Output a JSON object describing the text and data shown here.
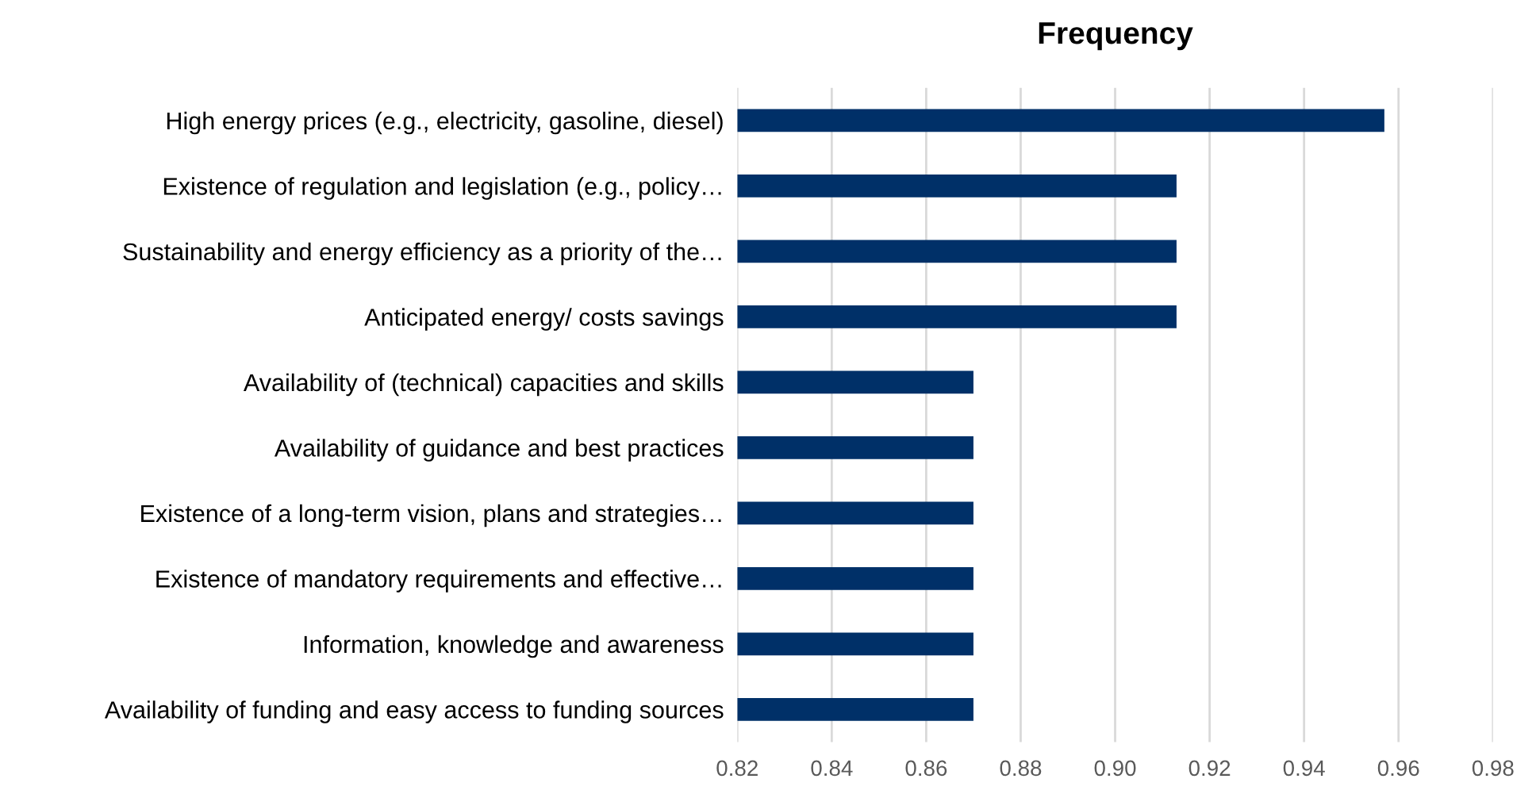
{
  "chart_data": {
    "type": "bar",
    "orientation": "horizontal",
    "title": "Frequency",
    "categories": [
      "High energy prices (e.g., electricity, gasoline, diesel)",
      "Existence of regulation and legislation (e.g., policy…",
      "Sustainability and energy efficiency as a priority of the…",
      "Anticipated energy/ costs savings",
      "Availability of (technical) capacities and skills",
      "Availability of guidance and best practices",
      "Existence of a long-term vision, plans and strategies…",
      "Existence of mandatory requirements and effective…",
      "Information, knowledge and awareness",
      "Availability of funding and easy access to funding sources"
    ],
    "values": [
      0.957,
      0.913,
      0.913,
      0.913,
      0.87,
      0.87,
      0.87,
      0.87,
      0.87,
      0.87
    ],
    "color": "#003068",
    "xlim": [
      0.82,
      0.98
    ],
    "xticks": [
      {
        "value": 0.82,
        "label": "0.82"
      },
      {
        "value": 0.84,
        "label": "0.84"
      },
      {
        "value": 0.86,
        "label": "0.86"
      },
      {
        "value": 0.88,
        "label": "0.88"
      },
      {
        "value": 0.9,
        "label": "0.90"
      },
      {
        "value": 0.92,
        "label": "0.92"
      },
      {
        "value": 0.94,
        "label": "0.94"
      },
      {
        "value": 0.96,
        "label": "0.96"
      },
      {
        "value": 0.98,
        "label": "0.98"
      }
    ],
    "grid": "x",
    "legend": false
  }
}
